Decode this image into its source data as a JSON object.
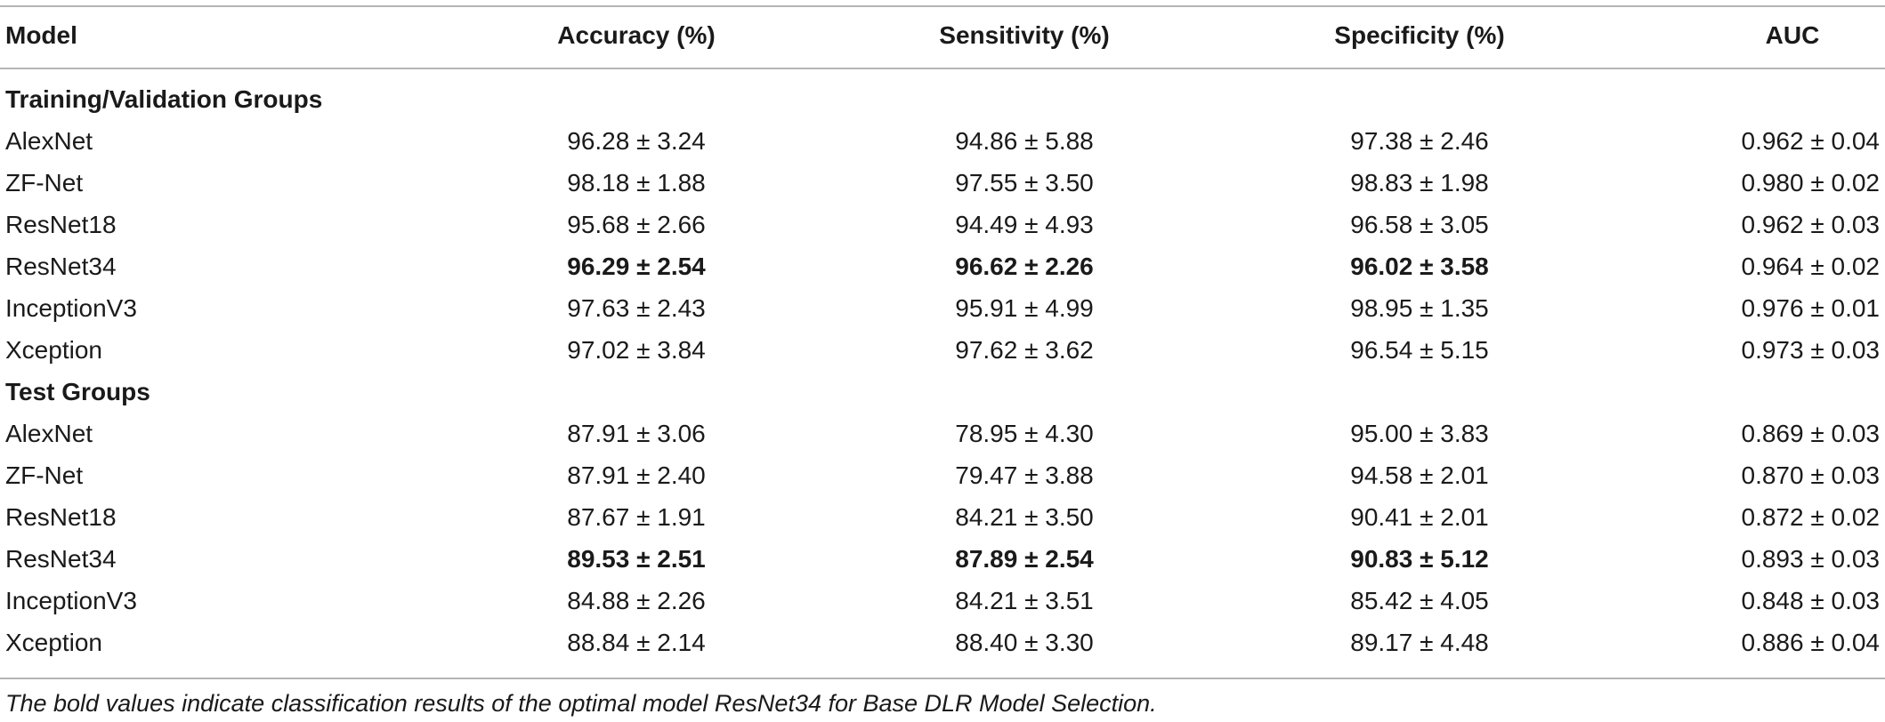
{
  "table": {
    "headers": {
      "model": "Model",
      "accuracy": "Accuracy (%)",
      "sensitivity": "Sensitivity (%)",
      "specificity": "Specificity (%)",
      "auc": "AUC"
    },
    "groups": [
      {
        "title": "Training/Validation Groups",
        "rows": [
          {
            "model": "AlexNet",
            "accuracy": "96.28 ± 3.24",
            "sensitivity": "94.86 ± 5.88",
            "specificity": "97.38 ± 2.46",
            "auc": "0.962 ± 0.04"
          },
          {
            "model": "ZF-Net",
            "accuracy": "98.18 ± 1.88",
            "sensitivity": "97.55 ± 3.50",
            "specificity": "98.83 ± 1.98",
            "auc": "0.980 ± 0.02"
          },
          {
            "model": "ResNet18",
            "accuracy": "95.68 ± 2.66",
            "sensitivity": "94.49 ± 4.93",
            "specificity": "96.58 ± 3.05",
            "auc": "0.962 ± 0.03"
          },
          {
            "model": "ResNet34",
            "accuracy": "96.29 ± 2.54",
            "sensitivity": "96.62 ± 2.26",
            "specificity": "96.02 ± 3.58",
            "auc": "0.964 ± 0.02"
          },
          {
            "model": "InceptionV3",
            "accuracy": "97.63 ± 2.43",
            "sensitivity": "95.91 ± 4.99",
            "specificity": "98.95 ± 1.35",
            "auc": "0.976 ± 0.01"
          },
          {
            "model": "Xception",
            "accuracy": "97.02 ± 3.84",
            "sensitivity": "97.62 ± 3.62",
            "specificity": "96.54 ± 5.15",
            "auc": "0.973 ± 0.03"
          }
        ]
      },
      {
        "title": "Test Groups",
        "rows": [
          {
            "model": "AlexNet",
            "accuracy": "87.91 ± 3.06",
            "sensitivity": "78.95 ± 4.30",
            "specificity": "95.00 ± 3.83",
            "auc": "0.869 ± 0.03"
          },
          {
            "model": "ZF-Net",
            "accuracy": "87.91 ± 2.40",
            "sensitivity": "79.47 ± 3.88",
            "specificity": "94.58 ± 2.01",
            "auc": "0.870 ± 0.03"
          },
          {
            "model": "ResNet18",
            "accuracy": "87.67 ± 1.91",
            "sensitivity": "84.21 ± 3.50",
            "specificity": "90.41 ± 2.01",
            "auc": "0.872 ± 0.02"
          },
          {
            "model": "ResNet34",
            "accuracy": "89.53 ± 2.51",
            "sensitivity": "87.89 ± 2.54",
            "specificity": "90.83 ± 5.12",
            "auc": "0.893 ± 0.03"
          },
          {
            "model": "InceptionV3",
            "accuracy": "84.88 ± 2.26",
            "sensitivity": "84.21 ± 3.51",
            "specificity": "85.42 ± 4.05",
            "auc": "0.848 ± 0.03"
          },
          {
            "model": "Xception",
            "accuracy": "88.84 ± 2.14",
            "sensitivity": "88.40 ± 3.30",
            "specificity": "89.17 ± 4.48",
            "auc": "0.886 ± 0.04"
          }
        ]
      }
    ]
  },
  "footnote": "The bold values indicate classification results of the optimal model ResNet34 for Base DLR Model Selection."
}
